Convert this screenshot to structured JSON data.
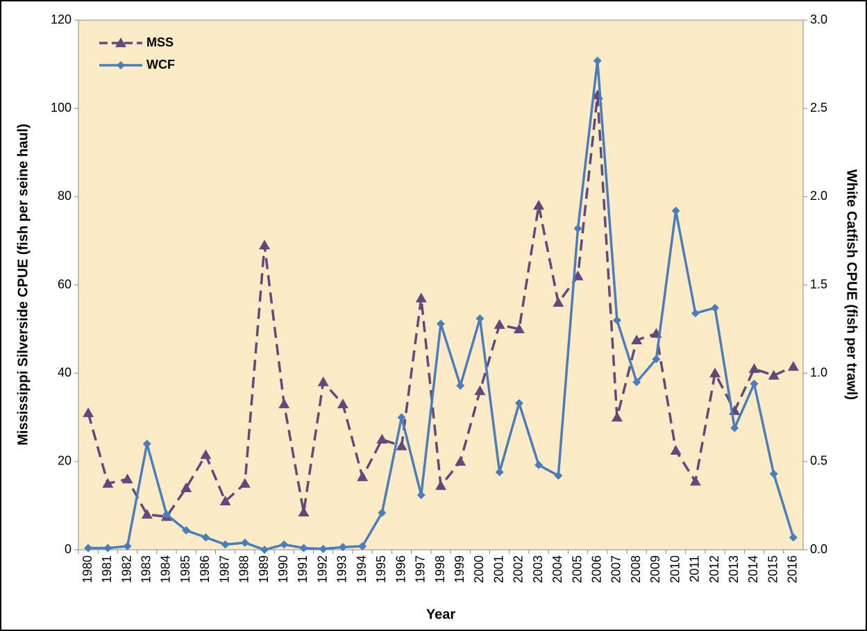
{
  "chart_data": {
    "type": "line",
    "x_label": "Year",
    "y_label": "Mississippi Silverside CPUE (fish per seine haul)",
    "y2_label": "White Catfish CPUE (fish per trawl)",
    "categories": [
      "1980",
      "1981",
      "1982",
      "1983",
      "1984",
      "1985",
      "1986",
      "1987",
      "1988",
      "1989",
      "1990",
      "1991",
      "1992",
      "1993",
      "1994",
      "1995",
      "1996",
      "1997",
      "1998",
      "1999",
      "2000",
      "2001",
      "2002",
      "2003",
      "2004",
      "2005",
      "2006",
      "2007",
      "2008",
      "2009",
      "2010",
      "2011",
      "2012",
      "2013",
      "2014",
      "2015",
      "2016"
    ],
    "series": [
      {
        "name": "MSS",
        "color": "#604a7b",
        "line_style": "dashed",
        "marker": "triangle",
        "values": [
          31,
          15,
          16,
          8,
          7.5,
          14,
          21.5,
          11,
          15,
          69,
          33,
          8.5,
          38,
          33,
          16.5,
          25,
          23.5,
          57,
          14.5,
          20,
          36,
          51,
          50,
          78,
          56,
          62,
          103,
          30,
          47.5,
          49,
          22.5,
          15.5,
          40,
          31.5,
          41,
          39.5,
          41.5
        ]
      },
      {
        "name": "WCF",
        "color": "#4a7ebb",
        "line_style": "solid",
        "marker": "diamond",
        "axis": "y2",
        "values": [
          0.01,
          0.01,
          0.02,
          0.6,
          0.2,
          0.11,
          0.07,
          0.03,
          0.04,
          0,
          0.03,
          0.01,
          0.005,
          0.015,
          0.02,
          0.21,
          0.75,
          0.31,
          1.28,
          0.93,
          1.31,
          0.44,
          0.83,
          0.48,
          0.42,
          1.82,
          2.77,
          1.3,
          0.95,
          1.08,
          1.92,
          1.34,
          1.37,
          0.69,
          0.94,
          0.43,
          0.07
        ]
      }
    ],
    "ylim": [
      0,
      120
    ],
    "yticks": [
      0,
      20,
      40,
      60,
      80,
      100,
      120
    ],
    "y2lim": [
      0,
      3
    ],
    "y2ticks": [
      {
        "value": 0,
        "label": "0.0"
      },
      {
        "value": 0.5,
        "label": "0.5"
      },
      {
        "value": 1,
        "label": "1.0"
      },
      {
        "value": 1.5,
        "label": "1.5"
      },
      {
        "value": 2,
        "label": "2.0"
      },
      {
        "value": 2.5,
        "label": "2.5"
      },
      {
        "value": 3,
        "label": "3.0"
      }
    ],
    "legend": "upper left",
    "plot_background": "#fdeac6"
  }
}
